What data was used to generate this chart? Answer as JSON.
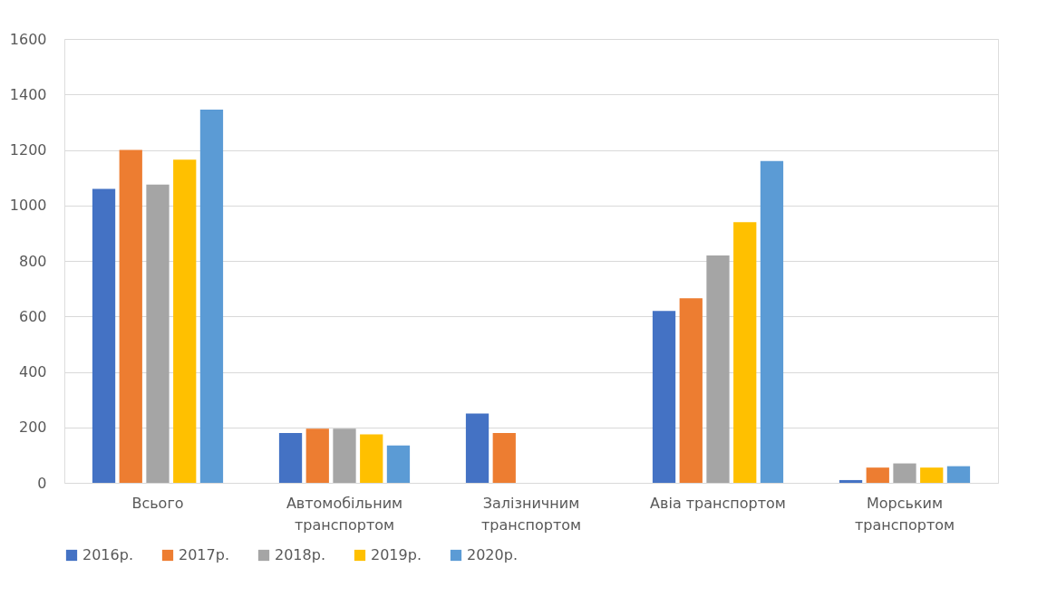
{
  "chart_data": {
    "type": "bar",
    "categories": [
      "Всього",
      "Автомобільним транспортом",
      "Залізничним транспортом",
      "Авіа транспортом",
      "Морським транспортом"
    ],
    "series": [
      {
        "name": "2016р.",
        "color": "#4472c4",
        "values": [
          1060,
          180,
          250,
          620,
          10
        ]
      },
      {
        "name": "2017р.",
        "color": "#ed7d31",
        "values": [
          1200,
          195,
          180,
          665,
          55
        ]
      },
      {
        "name": "2018р.",
        "color": "#a5a5a5",
        "values": [
          1075,
          195,
          null,
          820,
          70
        ]
      },
      {
        "name": "2019р.",
        "color": "#ffc000",
        "values": [
          1165,
          175,
          null,
          940,
          55
        ]
      },
      {
        "name": "2020р.",
        "color": "#5b9bd5",
        "values": [
          1345,
          135,
          null,
          1160,
          60
        ]
      }
    ],
    "ylim": [
      0,
      1600
    ],
    "yticks": [
      0,
      200,
      400,
      600,
      800,
      1000,
      1200,
      1400,
      1600
    ],
    "grid": "y",
    "legend": "bottom"
  }
}
